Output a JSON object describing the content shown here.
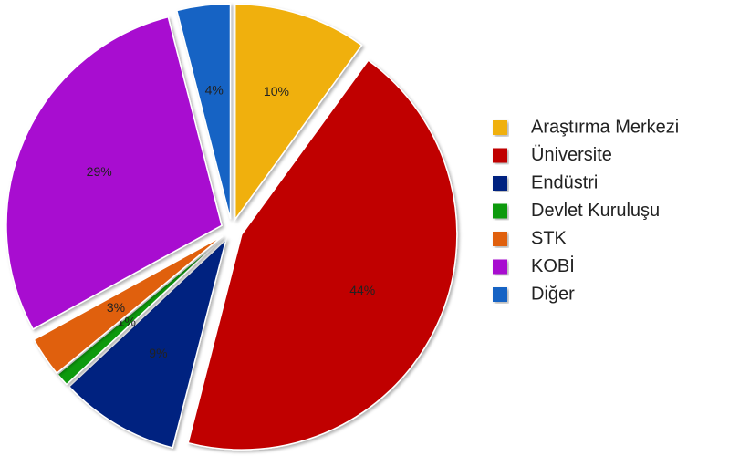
{
  "chart_data": {
    "type": "pie",
    "categories": [
      "Araştırma Merkezi",
      "Üniversite",
      "Endüstri",
      "Devlet Kuruluşu",
      "STK",
      "KOBİ",
      "Diğer"
    ],
    "values": [
      10,
      44,
      9,
      1,
      3,
      29,
      4
    ],
    "value_labels": [
      "10%",
      "44%",
      "9%",
      "1%",
      "3%",
      "29%",
      "4%"
    ],
    "colors": [
      "#f0b010",
      "#c00000",
      "#002080",
      "#109a10",
      "#e06010",
      "#a810d0",
      "#1464c4"
    ],
    "legend": "right"
  }
}
